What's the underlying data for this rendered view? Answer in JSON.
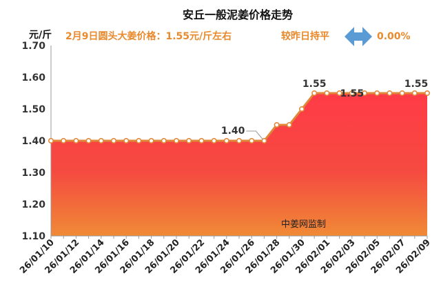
{
  "header": {
    "title": "安丘一般泥姜价格走势",
    "unit": "元/斤",
    "subtitle": "2月9日圆头大姜价格：1.55元/斤左右",
    "change_label": "较昨日持平",
    "change_value": "0.00%",
    "watermark": "中姜网监制",
    "change_icon": "left-right-arrow-icon"
  },
  "colors": {
    "line": "#e0883a",
    "marker_fill": "#ffffff",
    "area_top": "#ff3b47",
    "area_bottom": "#f08a36",
    "accent_text": "#e8892c",
    "arrow": "#5b9bd5"
  },
  "chart_data": {
    "type": "area",
    "title": "安丘一般泥姜价格走势",
    "ylabel": "元/斤",
    "ylim": [
      1.1,
      1.7
    ],
    "yticks": [
      "1.10",
      "1.20",
      "1.30",
      "1.40",
      "1.50",
      "1.60",
      "1.70"
    ],
    "grid": false,
    "x": [
      "26/01/10",
      "26/01/11",
      "26/01/12",
      "26/01/13",
      "26/01/14",
      "26/01/15",
      "26/01/16",
      "26/01/17",
      "26/01/18",
      "26/01/19",
      "26/01/20",
      "26/01/21",
      "26/01/22",
      "26/01/23",
      "26/01/24",
      "26/01/25",
      "26/01/26",
      "26/01/27",
      "26/01/28",
      "26/01/29",
      "26/01/30",
      "26/01/31",
      "26/02/01",
      "26/02/02",
      "26/02/03",
      "26/02/04",
      "26/02/05",
      "26/02/06",
      "26/02/07",
      "26/02/08",
      "26/02/09"
    ],
    "xtick_labels": [
      "26/01/10",
      "26/01/12",
      "26/01/14",
      "26/01/16",
      "26/01/18",
      "26/01/20",
      "26/01/22",
      "26/01/24",
      "26/01/26",
      "26/01/28",
      "26/01/30",
      "26/02/01",
      "26/02/03",
      "26/02/05",
      "26/02/07",
      "26/02/09"
    ],
    "values": [
      1.4,
      1.4,
      1.4,
      1.4,
      1.4,
      1.4,
      1.4,
      1.4,
      1.4,
      1.4,
      1.4,
      1.4,
      1.4,
      1.4,
      1.4,
      1.4,
      1.4,
      1.4,
      1.45,
      1.45,
      1.5,
      1.55,
      1.55,
      1.55,
      1.55,
      1.55,
      1.55,
      1.55,
      1.55,
      1.55,
      1.55
    ],
    "data_labels": [
      {
        "date": "26/01/27",
        "text": "1.40"
      },
      {
        "date": "26/01/31",
        "text": "1.55"
      },
      {
        "date": "26/02/03",
        "text": "1.55"
      },
      {
        "date": "26/02/09",
        "text": "1.55"
      }
    ]
  }
}
